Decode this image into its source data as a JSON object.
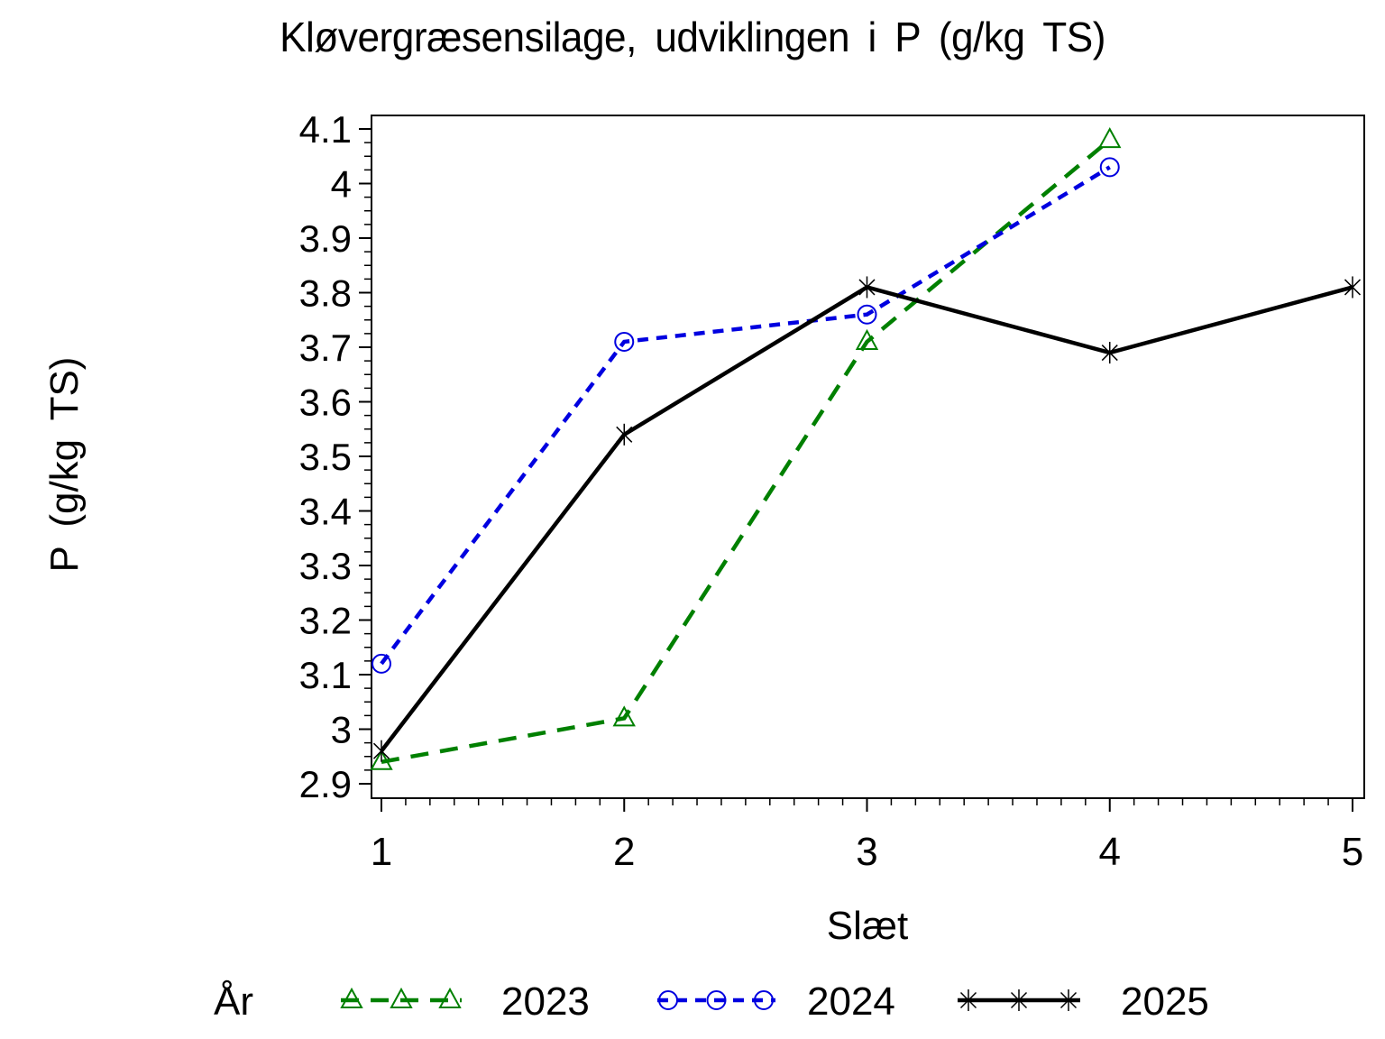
{
  "title": "Kløvergræsensilage, udviklingen i P (g/kg TS)",
  "chart_data": {
    "type": "line",
    "title": "Kløvergræsensilage, udviklingen i P (g/kg TS)",
    "xlabel": "Slæt",
    "ylabel": "P (g/kg TS)",
    "x_axis": {
      "ticks": [
        1,
        2,
        3,
        4,
        5
      ],
      "tick_labels": [
        "1",
        "2",
        "3",
        "4",
        "5"
      ],
      "minor_tick_step": 0.1,
      "range": [
        0.96,
        5.05
      ]
    },
    "y_axis": {
      "ticks": [
        2.9,
        3.0,
        3.1,
        3.2,
        3.3,
        3.4,
        3.5,
        3.6,
        3.7,
        3.8,
        3.9,
        4.0,
        4.1
      ],
      "tick_labels": [
        "2.9",
        "3",
        "3.1",
        "3.2",
        "3.3",
        "3.4",
        "3.5",
        "3.6",
        "3.7",
        "3.8",
        "3.9",
        "4",
        "4.1"
      ],
      "minor_tick_step": 0.025,
      "range": [
        2.875,
        4.137
      ]
    },
    "series": [
      {
        "name": "2023",
        "color": "#008000",
        "line_style": "long-dash",
        "marker": "triangle",
        "x": [
          1,
          2,
          3,
          4
        ],
        "values": [
          2.94,
          3.02,
          3.71,
          4.08
        ]
      },
      {
        "name": "2024",
        "color": "#0000e0",
        "line_style": "short-dash",
        "marker": "circle",
        "x": [
          1,
          2,
          3,
          4
        ],
        "values": [
          3.12,
          3.71,
          3.76,
          4.03
        ]
      },
      {
        "name": "2025",
        "color": "#000000",
        "line_style": "solid",
        "marker": "star",
        "x": [
          1,
          2,
          3,
          4,
          5
        ],
        "values": [
          2.96,
          3.54,
          3.81,
          3.69,
          3.81
        ]
      }
    ],
    "legend": {
      "title": "År",
      "entries": [
        "2023",
        "2024",
        "2025"
      ],
      "position": "bottom"
    },
    "grid": "off",
    "frame_color": "#000000"
  }
}
